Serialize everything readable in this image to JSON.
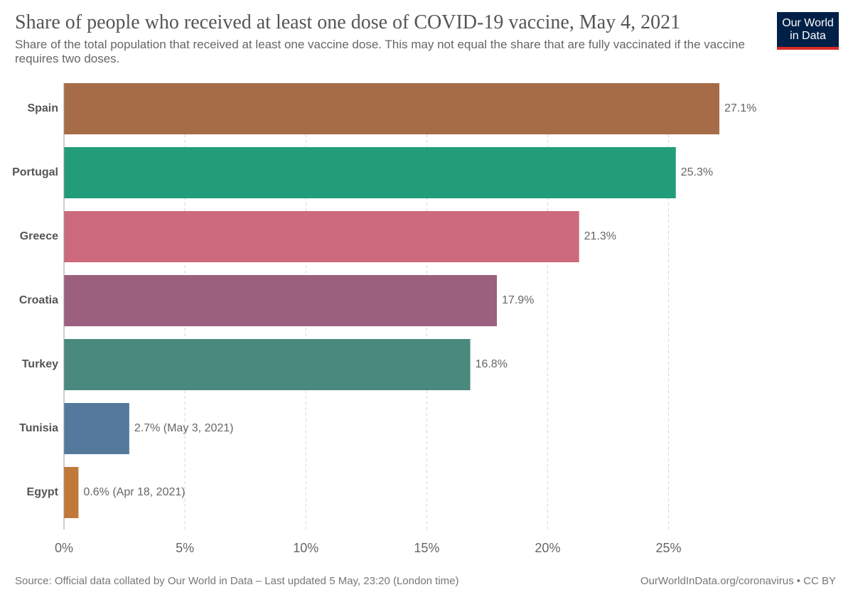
{
  "header": {
    "title": "Share of people who received at least one dose of COVID-19 vaccine, May 4, 2021",
    "subtitle": "Share of the total population that received at least one vaccine dose. This may not equal the share that are fully vaccinated if the vaccine requires two doses."
  },
  "logo": {
    "line1": "Our World",
    "line2": "in Data",
    "bg_color": "#002147",
    "accent_color": "#dc2b27"
  },
  "chart_data": {
    "type": "bar",
    "orientation": "horizontal",
    "title": "Share of people who received at least one dose of COVID-19 vaccine, May 4, 2021",
    "categories": [
      "Spain",
      "Portugal",
      "Greece",
      "Croatia",
      "Turkey",
      "Tunisia",
      "Egypt"
    ],
    "values": [
      27.1,
      25.3,
      21.3,
      17.9,
      16.8,
      2.7,
      0.6
    ],
    "value_labels": [
      "27.1%",
      "25.3%",
      "21.3%",
      "17.9%",
      "16.8%",
      "2.7% (May 3, 2021)",
      "0.6% (Apr 18, 2021)"
    ],
    "colors": [
      "#a66c47",
      "#239c7a",
      "#cc6a7b",
      "#9b607e",
      "#4a897e",
      "#55799c",
      "#c17939"
    ],
    "xticks": [
      0,
      5,
      10,
      15,
      20,
      25
    ],
    "xtick_labels": [
      "0%",
      "5%",
      "10%",
      "15%",
      "20%",
      "25%"
    ],
    "xlim": [
      0,
      27.1
    ],
    "grid": "vertical dashed"
  },
  "footer": {
    "source": "Source: Official data collated by Our World in Data – Last updated 5 May, 23:20 (London time)",
    "url": "OurWorldInData.org/coronavirus • CC BY"
  }
}
